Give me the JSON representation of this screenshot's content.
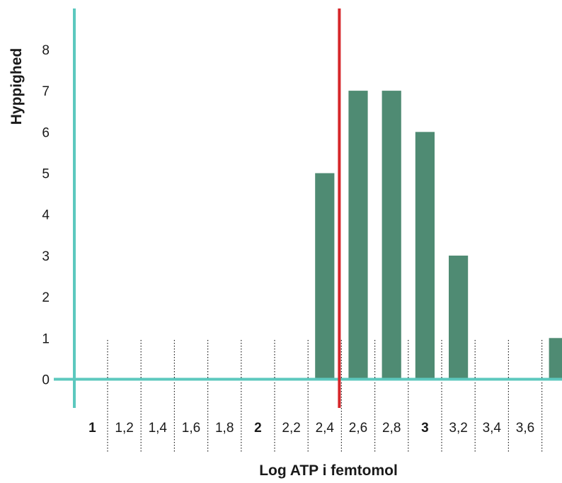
{
  "chart_data": {
    "type": "bar",
    "title": "",
    "xlabel": "Log ATP i femtomol",
    "ylabel": "Hyppighed",
    "x_tick_labels": [
      "1",
      "1,2",
      "1,4",
      "1,6",
      "1,8",
      "2",
      "2,2",
      "2,4",
      "2,6",
      "2,8",
      "3",
      "3,2",
      "3,4",
      "3,6"
    ],
    "x_tick_bold": [
      true,
      false,
      false,
      false,
      false,
      true,
      false,
      false,
      false,
      false,
      true,
      false,
      false,
      false
    ],
    "y_ticks": [
      "0",
      "1",
      "2",
      "3",
      "4",
      "5",
      "6",
      "7",
      "8"
    ],
    "ylim": [
      0,
      8
    ],
    "categories": [
      "2,2",
      "2,4",
      "2,6",
      "2,8",
      "3",
      "3,6"
    ],
    "values": [
      5,
      7,
      7,
      6,
      3,
      1
    ],
    "threshold_x": "2,2",
    "colors": {
      "bar": "#4f8b73",
      "axis": "#5cc8be",
      "threshold": "#d6262a",
      "separator": "#222222"
    },
    "grid": false
  }
}
